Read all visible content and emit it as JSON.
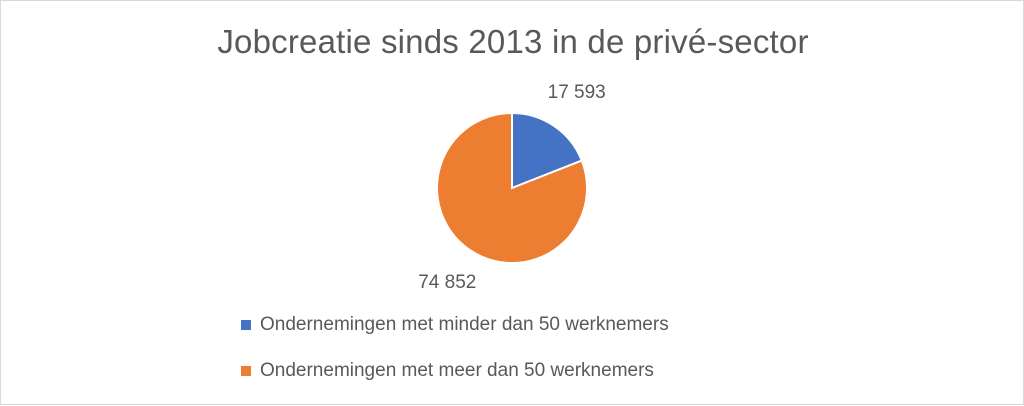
{
  "chart_data": {
    "type": "pie",
    "title": "Jobcreatie sinds 2013 in de privé-sector",
    "categories": [
      "Ondernemingen met minder dan 50 werknemers",
      "Ondernemingen met meer dan 50 werknemers"
    ],
    "values": [
      17593,
      74852
    ],
    "data_labels": [
      "17 593",
      "74 852"
    ],
    "colors": [
      "#4472C4",
      "#ED7D31"
    ],
    "legend": "bottom"
  }
}
